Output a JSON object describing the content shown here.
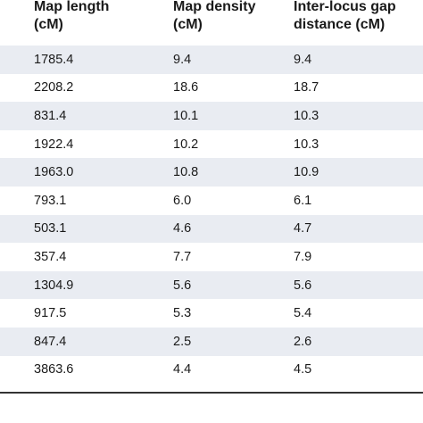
{
  "table": {
    "headers": [
      {
        "line1": "Map length",
        "line2": "(cM)"
      },
      {
        "line1": "Map density",
        "line2": "(cM)"
      },
      {
        "line1": "Inter-locus gap",
        "line2": "distance (cM)"
      }
    ],
    "rows": [
      [
        "1785.4",
        "9.4",
        "9.4"
      ],
      [
        "2208.2",
        "18.6",
        "18.7"
      ],
      [
        "831.4",
        "10.1",
        "10.3"
      ],
      [
        "1922.4",
        "10.2",
        "10.3"
      ],
      [
        "1963.0",
        "10.8",
        "10.9"
      ],
      [
        "793.1",
        "6.0",
        "6.1"
      ],
      [
        "503.1",
        "4.6",
        "4.7"
      ],
      [
        "357.4",
        "7.7",
        "7.9"
      ],
      [
        "1304.9",
        "5.6",
        "5.6"
      ],
      [
        "917.5",
        "5.3",
        "5.4"
      ],
      [
        "847.4",
        "2.5",
        "2.6"
      ],
      [
        "3863.6",
        "4.4",
        "4.5"
      ]
    ],
    "shade_color": "#e9ecf2"
  }
}
